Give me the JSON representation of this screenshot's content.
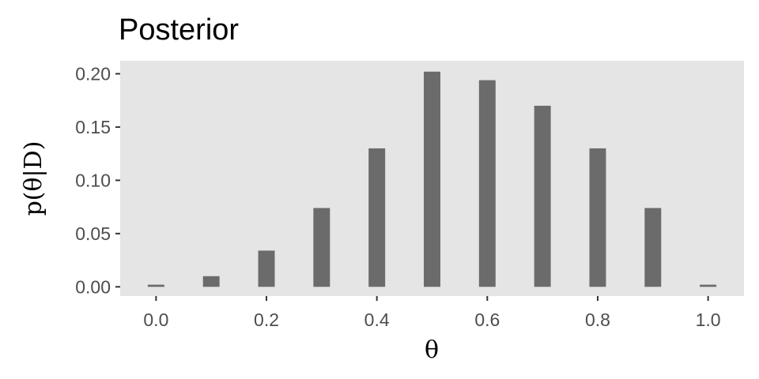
{
  "chart_data": {
    "type": "bar",
    "title": "Posterior",
    "xlabel": "θ",
    "ylabel": "p(θ|D)",
    "x": [
      0.0,
      0.1,
      0.2,
      0.3,
      0.4,
      0.5,
      0.6,
      0.7,
      0.8,
      0.9,
      1.0
    ],
    "values": [
      0.002,
      0.01,
      0.034,
      0.074,
      0.13,
      0.202,
      0.194,
      0.17,
      0.13,
      0.074,
      0.002
    ],
    "xlim": [
      -0.065,
      1.065
    ],
    "ylim": [
      -0.0087,
      0.2122
    ],
    "xticks": [
      0.0,
      0.2,
      0.4,
      0.6,
      0.8,
      1.0
    ],
    "xtick_labels": [
      "0.0",
      "0.2",
      "0.4",
      "0.6",
      "0.8",
      "1.0"
    ],
    "yticks": [
      0.0,
      0.05,
      0.1,
      0.15,
      0.2
    ],
    "ytick_labels": [
      "0.00",
      "0.05",
      "0.10",
      "0.15",
      "0.20"
    ],
    "grid": false,
    "legend": "none",
    "colors": {
      "panel": "#e5e5e5",
      "bar": "#6b6b6b",
      "tick": "#333333",
      "tick_label": "#4d4d4d"
    }
  }
}
